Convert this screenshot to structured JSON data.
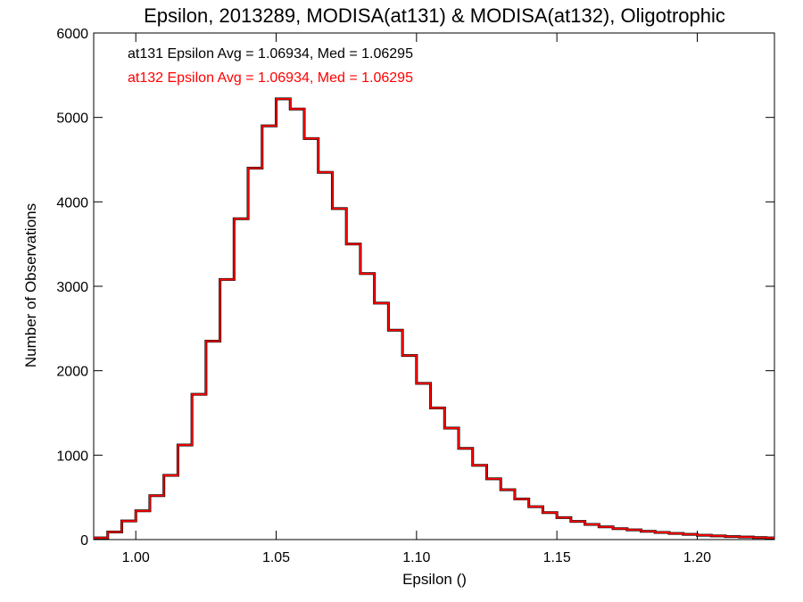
{
  "chart_data": {
    "type": "histogram",
    "title": "Epsilon, 2013289, MODISA(at131) & MODISA(at132), Oligotrophic",
    "xlabel": "Epsilon ()",
    "ylabel": "Number of Observations",
    "xlim": [
      0.985,
      1.2275
    ],
    "ylim": [
      0,
      6000
    ],
    "x_ticks": [
      1.0,
      1.05,
      1.1,
      1.15,
      1.2
    ],
    "x_tick_labels": [
      "1.00",
      "1.05",
      "1.10",
      "1.15",
      "1.20"
    ],
    "y_ticks": [
      0,
      1000,
      2000,
      3000,
      4000,
      5000,
      6000
    ],
    "y_tick_labels": [
      "0",
      "1000",
      "2000",
      "3000",
      "4000",
      "5000",
      "6000"
    ],
    "grid": false,
    "legend_position": "top-left",
    "annotations": [
      "at131 Epsilon Avg = 1.06934, Med = 1.06295",
      "at132 Epsilon Avg = 1.06934, Med = 1.06295"
    ],
    "series": [
      {
        "name": "at131",
        "color": "#000000",
        "x": [
          0.9875,
          0.9925,
          0.9975,
          1.0025,
          1.0075,
          1.0125,
          1.0175,
          1.0225,
          1.0275,
          1.0325,
          1.0375,
          1.0425,
          1.0475,
          1.0525,
          1.0575,
          1.0625,
          1.0675,
          1.0725,
          1.0775,
          1.0825,
          1.0875,
          1.0925,
          1.0975,
          1.1025,
          1.1075,
          1.1125,
          1.1175,
          1.1225,
          1.1275,
          1.1325,
          1.1375,
          1.1425,
          1.1475,
          1.1525,
          1.1575,
          1.1625,
          1.1675,
          1.1725,
          1.1775,
          1.1825,
          1.1875,
          1.1925,
          1.1975,
          1.2025,
          1.2075,
          1.2125,
          1.2175,
          1.2225,
          1.2265
        ],
        "y": [
          20,
          90,
          220,
          340,
          520,
          760,
          1120,
          1720,
          2350,
          3080,
          3800,
          4400,
          4900,
          5220,
          5100,
          4750,
          4350,
          3920,
          3500,
          3150,
          2800,
          2480,
          2180,
          1850,
          1560,
          1320,
          1080,
          880,
          720,
          590,
          480,
          390,
          320,
          260,
          215,
          180,
          150,
          130,
          115,
          98,
          85,
          72,
          62,
          52,
          44,
          36,
          30,
          24,
          20
        ]
      },
      {
        "name": "at132",
        "color": "#ff0000",
        "x": [
          0.9875,
          0.9925,
          0.9975,
          1.0025,
          1.0075,
          1.0125,
          1.0175,
          1.0225,
          1.0275,
          1.0325,
          1.0375,
          1.0425,
          1.0475,
          1.0525,
          1.0575,
          1.0625,
          1.0675,
          1.0725,
          1.0775,
          1.0825,
          1.0875,
          1.0925,
          1.0975,
          1.1025,
          1.1075,
          1.1125,
          1.1175,
          1.1225,
          1.1275,
          1.1325,
          1.1375,
          1.1425,
          1.1475,
          1.1525,
          1.1575,
          1.1625,
          1.1675,
          1.1725,
          1.1775,
          1.1825,
          1.1875,
          1.1925,
          1.1975,
          1.2025,
          1.2075,
          1.2125,
          1.2175,
          1.2225,
          1.2265
        ],
        "y": [
          20,
          90,
          220,
          340,
          520,
          760,
          1120,
          1720,
          2350,
          3080,
          3800,
          4400,
          4900,
          5220,
          5100,
          4750,
          4350,
          3920,
          3500,
          3150,
          2800,
          2480,
          2180,
          1850,
          1560,
          1320,
          1080,
          880,
          720,
          590,
          480,
          390,
          320,
          260,
          215,
          180,
          150,
          130,
          115,
          98,
          85,
          72,
          62,
          52,
          44,
          36,
          30,
          24,
          20
        ]
      }
    ]
  }
}
